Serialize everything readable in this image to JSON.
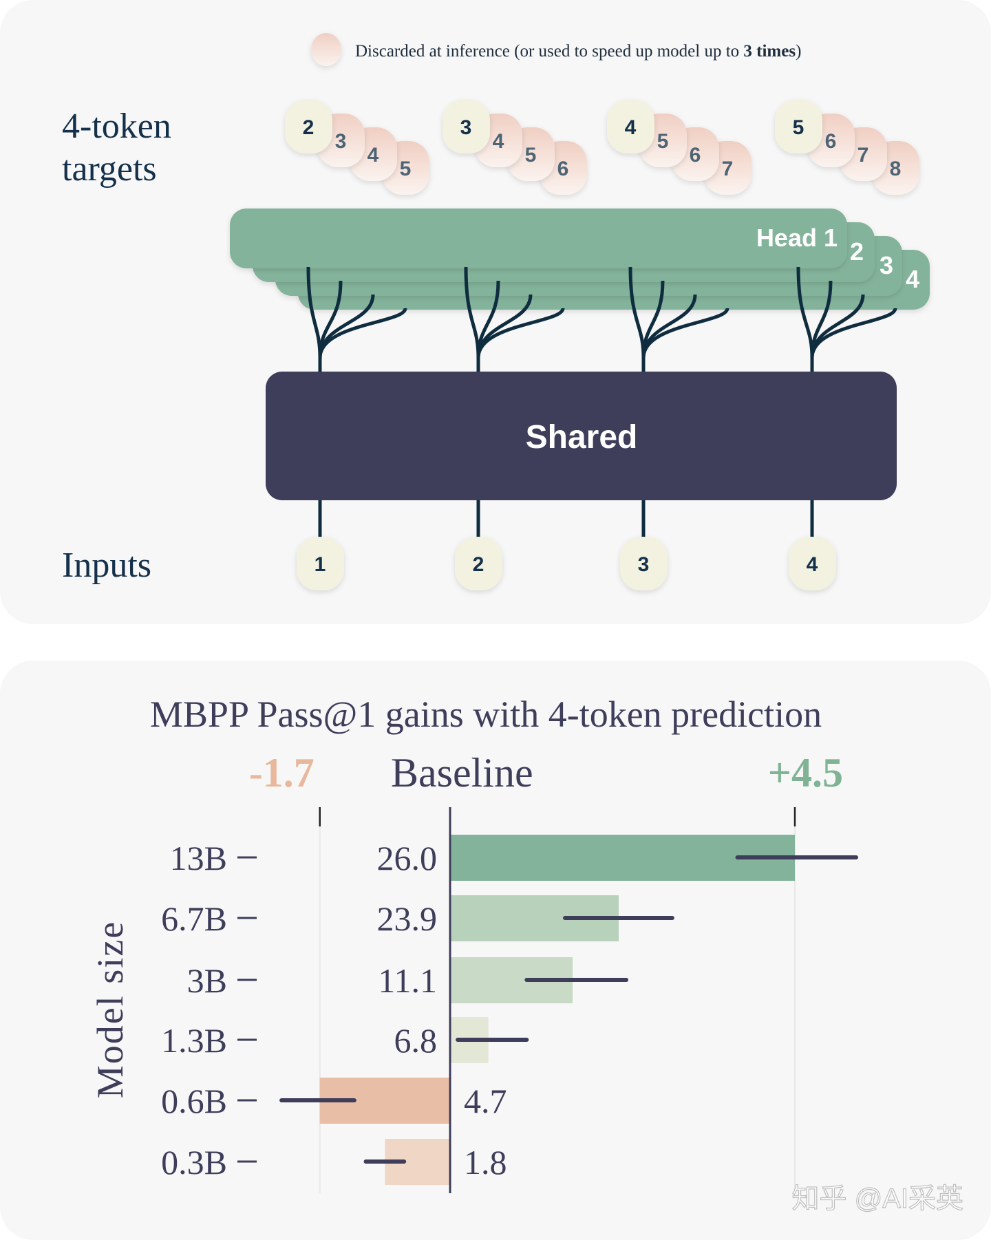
{
  "diagram": {
    "legend": {
      "text": "Discarded at inference (or used to speed up model up to ",
      "bold": "3 times",
      "close": ")"
    },
    "targets_label": [
      "4-token",
      "targets"
    ],
    "inputs_label": "Inputs",
    "heads": [
      "Head 1",
      "2",
      "3",
      "4"
    ],
    "shared_label": "Shared",
    "inputs": [
      "1",
      "2",
      "3",
      "4"
    ],
    "targets": [
      [
        "2",
        "3",
        "4",
        "5"
      ],
      [
        "3",
        "4",
        "5",
        "6"
      ],
      [
        "4",
        "5",
        "6",
        "7"
      ],
      [
        "5",
        "6",
        "7",
        "8"
      ]
    ],
    "colors": {
      "head": "#84b39b",
      "shared": "#3e3d5a",
      "input_bubble": "#f3f1df",
      "discarded_bubble": "#f2d3c8",
      "line": "#0f2d3f"
    }
  },
  "chart_data": {
    "type": "bar",
    "title": "MBPP Pass@1  gains with 4-token prediction",
    "ylabel": "Model size",
    "categories": [
      "13B",
      "6.7B",
      "3B",
      "1.3B",
      "0.6B",
      "0.3B"
    ],
    "baseline_values": [
      "26.0",
      "23.9",
      "11.1",
      "6.8",
      "4.7",
      "1.8"
    ],
    "values": [
      4.5,
      2.2,
      1.6,
      0.5,
      -1.7,
      -0.85
    ],
    "error_low": [
      3.75,
      1.5,
      1.0,
      0.1,
      -2.2,
      -1.1
    ],
    "error_high": [
      5.3,
      2.9,
      2.3,
      1.0,
      -1.25,
      -0.6
    ],
    "xticks": [
      {
        "value": -1.7,
        "label": "-1.7"
      },
      {
        "value": 0,
        "label": "Baseline"
      },
      {
        "value": 4.5,
        "label": "+4.5"
      }
    ],
    "xlim": [
      -1.7,
      4.5
    ],
    "bar_colors": [
      "#84b39b",
      "#b8d1bb",
      "#c9dbc6",
      "#e3e7d6",
      "#e9bea6",
      "#f0d6c4"
    ],
    "colors": {
      "negative": "#e8b89c",
      "positive": "#7fb394",
      "text": "#3e3d5a",
      "error_bar": "#3e3d5a"
    }
  },
  "watermark": "知乎 @AI采英"
}
